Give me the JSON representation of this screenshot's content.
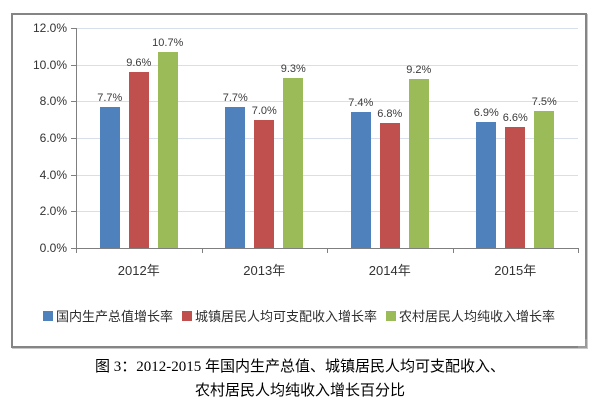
{
  "chart_data": {
    "type": "bar",
    "categories": [
      "2012年",
      "2013年",
      "2014年",
      "2015年"
    ],
    "series": [
      {
        "name": "国内生产总值增长率",
        "color": "#4F81BD",
        "values": [
          7.7,
          7.7,
          7.4,
          6.9
        ]
      },
      {
        "name": "城镇居民人均可支配收入增长率",
        "color": "#C0504D",
        "values": [
          9.6,
          7.0,
          6.8,
          6.6
        ]
      },
      {
        "name": "农村居民人均纯收入增长率",
        "color": "#9BBB59",
        "values": [
          10.7,
          9.3,
          9.2,
          7.5
        ]
      }
    ],
    "title": "",
    "xlabel": "",
    "ylabel": "",
    "ylim": [
      0,
      12
    ],
    "ytick_step": 2,
    "yticks": [
      "12.0%",
      "10.0%",
      "8.0%",
      "6.0%",
      "4.0%",
      "2.0%",
      "0.0%"
    ],
    "grid": true,
    "data_labels": true,
    "data_label_suffix": "%",
    "legend_position": "bottom"
  },
  "caption": {
    "line1": "图 3：2012-2015 年国内生产总值、城镇居民人均可支配收入、",
    "line2": "农村居民人均纯收入增长百分比"
  },
  "style_colors": {
    "grid": "#d9dfea",
    "axis": "#7f7f7f",
    "frame_border": "#858585",
    "label_text": "#3b3b3b"
  }
}
